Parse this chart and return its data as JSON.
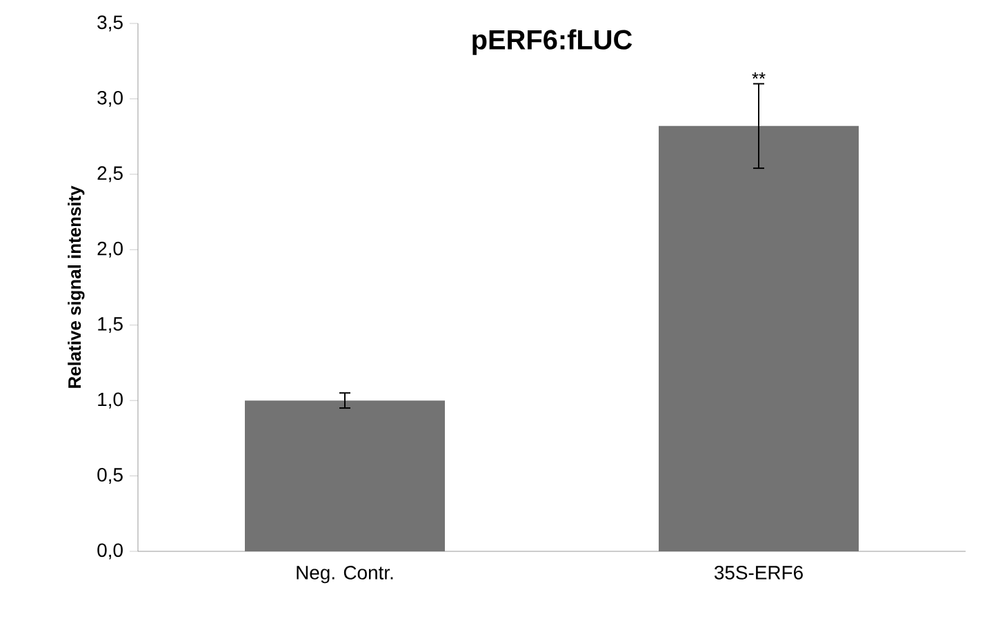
{
  "chart_data": {
    "type": "bar",
    "title": "pERF6:fLUC",
    "ylabel": "Relative signal intensity",
    "categories": [
      "Neg. Contr.",
      "35S-ERF6"
    ],
    "values": [
      1.0,
      2.82
    ],
    "errors": [
      0.05,
      0.28
    ],
    "color": "#737373",
    "ylim": [
      0,
      3.5
    ],
    "yticks": [
      {
        "value": 0,
        "label": "0,0"
      },
      {
        "value": 0.5,
        "label": "0,5"
      },
      {
        "value": 1,
        "label": "1,0"
      },
      {
        "value": 1.5,
        "label": "1,5"
      },
      {
        "value": 2,
        "label": "2,0"
      },
      {
        "value": 2.5,
        "label": "2,5"
      },
      {
        "value": 3,
        "label": "3,0"
      },
      {
        "value": 3.5,
        "label": "3,5"
      }
    ],
    "annotations": [
      "**"
    ],
    "grid": false
  }
}
